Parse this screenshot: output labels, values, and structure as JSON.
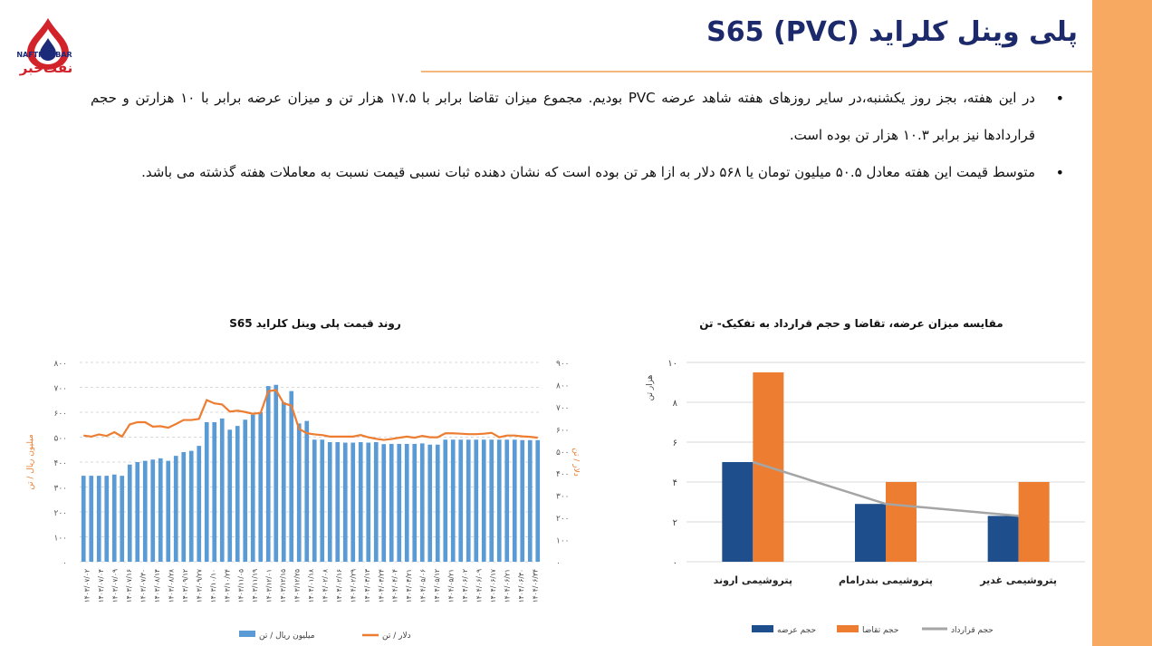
{
  "logo": {
    "caption_en": "NAFTKHABAR",
    "caption_fa": "نفت‌خبر",
    "icon": "flame-drop-icon",
    "colors": {
      "red": "#d2232a",
      "blue": "#1b2b7a"
    }
  },
  "slide": {
    "title": "پلی وینل کلراید (PVC) S65",
    "bullets": [
      "در این هفته، بجز روز یکشنبه،در سایر روزهای هفته شاهد عرضه PVC بودیم. مجموع میزان تقاضا برابر با ۱۷.۵ هزار تن و میزان عرضه برابر با ۱۰ هزارتن و حجم قراردادها نیز برابر ۱۰.۳ هزار تن بوده است.",
      "متوسط قیمت این هفته معادل ۵۰.۵ میلیون تومان یا ۵۶۸ دلار به ازا هر تن بوده است که نشان دهنده ثبات نسبی قیمت نسبت به معاملات هفته گذشته می باشد."
    ]
  },
  "chart_data": [
    {
      "type": "bar",
      "title": "روند قیمت پلی وینل کلراید S65",
      "ylabel_left": "میلیون ریال / تن",
      "ylabel_right": "دلار / تن",
      "ylim_left": [
        0,
        800
      ],
      "ylim_right": [
        0,
        900
      ],
      "yticks_left": [
        "۰",
        "۱۰۰",
        "۲۰۰",
        "۳۰۰",
        "۴۰۰",
        "۵۰۰",
        "۶۰۰",
        "۷۰۰",
        "۸۰۰"
      ],
      "yticks_right": [
        "۰",
        "۱۰۰",
        "۲۰۰",
        "۳۰۰",
        "۴۰۰",
        "۵۰۰",
        "۶۰۰",
        "۷۰۰",
        "۸۰۰",
        "۹۰۰"
      ],
      "xticks": [
        "۱۴۰۳/۰۷/۰۲",
        "۱۴۰۳/۰۷/۰۴",
        "۱۴۰۳/۰۷/۰۹",
        "۱۴۰۳/۰۷/۱۶",
        "۱۴۰۳/۰۷/۳۰",
        "۱۴۰۳/۰۸/۱۴",
        "۱۴۰۳/۰۸/۲۸",
        "۱۴۰۳/۰۹/۱۲",
        "۱۴۰۳/۰۹/۲۷",
        "۱۴۰۳/۱۰/۱۰",
        "۱۴۰۳/۱۰/۲۴",
        "۱۴۰۳/۱۱/۰۵",
        "۱۴۰۳/۱۱/۱۹",
        "۱۴۰۳/۱۲/۰۱",
        "۱۴۰۳/۱۲/۱۵",
        "۱۴۰۳/۱۲/۲۵",
        "۱۴۰۴/۰۱/۱۸",
        "۱۴۰۴/۰۲/۰۸",
        "۱۴۰۴/۰۲/۱۶",
        "۱۴۰۴/۰۲/۲۹",
        "۱۴۰۴/۰۳/۱۳",
        "۱۴۰۴/۰۳/۲۴",
        "۱۴۰۴/۰۴/۰۴",
        "۱۴۰۴/۰۴/۲۱",
        "۱۴۰۴/۰۵/۰۶",
        "۱۴۰۴/۰۵/۱۲",
        "۱۴۰۴/۰۵/۲۱",
        "۱۴۰۴/۰۶/۰۲",
        "۱۴۰۴/۰۶/۰۹",
        "۱۴۰۴/۰۶/۱۷",
        "۱۴۰۴/۰۶/۲۱",
        "۱۴۰۴/۰۶/۳۰",
        "۱۴۰۴/۰۶/۳۴"
      ],
      "series": [
        {
          "name": "میلیون ریال / تن",
          "kind": "bar",
          "axis": "left",
          "color": "#5b9bd5",
          "values": [
            345,
            345,
            345,
            345,
            350,
            345,
            390,
            400,
            405,
            410,
            415,
            405,
            425,
            440,
            445,
            465,
            560,
            560,
            575,
            530,
            545,
            570,
            590,
            600,
            705,
            710,
            640,
            685,
            555,
            565,
            490,
            490,
            480,
            480,
            478,
            478,
            480,
            478,
            480,
            472,
            473,
            473,
            473,
            473,
            475,
            470,
            470,
            490,
            490,
            490,
            490,
            490,
            490,
            490,
            490,
            490,
            490,
            488,
            488,
            488
          ]
        },
        {
          "name": "دلار / تن",
          "kind": "line",
          "axis": "right",
          "color": "#ed7d31",
          "values": [
            570,
            565,
            575,
            568,
            585,
            565,
            620,
            630,
            630,
            610,
            612,
            605,
            622,
            640,
            640,
            645,
            730,
            715,
            710,
            678,
            682,
            676,
            668,
            672,
            770,
            775,
            715,
            705,
            600,
            580,
            575,
            572,
            565,
            565,
            565,
            565,
            572,
            562,
            555,
            550,
            554,
            560,
            565,
            560,
            568,
            562,
            562,
            580,
            580,
            578,
            576,
            576,
            578,
            582,
            562,
            570,
            570,
            566,
            564,
            560
          ]
        }
      ],
      "legend": "bottom"
    },
    {
      "type": "bar",
      "title": "مقایسه میزان عرضه، تقاضا و حجم قرارداد به تفکیک- تن",
      "ylabel": "هزار تن",
      "ylim": [
        0,
        10
      ],
      "yticks": [
        "۰",
        "۲",
        "۴",
        "۶",
        "۸",
        "۱۰"
      ],
      "categories": [
        "پتروشیمی اروند",
        "پتروشیمی بندرامام",
        "پتروشیمی غدیر"
      ],
      "series": [
        {
          "name": "حجم عرضه",
          "kind": "bar",
          "color": "#1f4e8c",
          "values": [
            5.0,
            2.9,
            2.3
          ]
        },
        {
          "name": "حجم تقاضا",
          "kind": "bar",
          "color": "#ed7d31",
          "values": [
            9.5,
            4.0,
            4.0
          ]
        },
        {
          "name": "حجم قرارداد",
          "kind": "line",
          "color": "#a5a5a5",
          "values": [
            5.0,
            2.9,
            2.3
          ]
        }
      ],
      "grid": true,
      "legend": "bottom"
    }
  ]
}
